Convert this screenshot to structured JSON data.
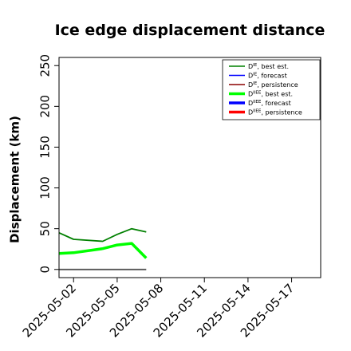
{
  "chart_data": {
    "type": "line",
    "title": "Ice edge displacement distance",
    "xlabel": "",
    "ylabel": "Displacement (km)",
    "ylim": [
      -10,
      260
    ],
    "yticks": [
      0,
      50,
      100,
      150,
      200,
      250
    ],
    "xlim": [
      "2025-05-01",
      "2025-05-19"
    ],
    "xticks": [
      "2025-05-02",
      "2025-05-05",
      "2025-05-08",
      "2025-05-11",
      "2025-05-14",
      "2025-05-17"
    ],
    "highlight_tick": "2025-05-08",
    "highlight_color": "#228b22",
    "grid": false,
    "legend_position": "top-right",
    "series": [
      {
        "name": "D^IE, best est.",
        "main": "D",
        "sup": "IE",
        "suffix": ", best est.",
        "color": "#008000",
        "width": "thin",
        "x": [
          "2025-05-01",
          "2025-05-02",
          "2025-05-04",
          "2025-05-05",
          "2025-05-06",
          "2025-05-07"
        ],
        "values": [
          45,
          37,
          34.5,
          43,
          50,
          46
        ]
      },
      {
        "name": "D^IE, forecast",
        "main": "D",
        "sup": "IE",
        "suffix": ", forecast",
        "color": "#0000ff",
        "width": "thin",
        "x": [],
        "values": []
      },
      {
        "name": "D^IE, persistence",
        "main": "D",
        "sup": "IE",
        "suffix": ", persistence",
        "color": "#8b0000",
        "width": "thin",
        "x": [],
        "values": []
      },
      {
        "name": "D^IIEE, best est.",
        "main": "D",
        "sup": "IIEE",
        "suffix": ", best est.",
        "color": "#00ff00",
        "width": "thick",
        "x": [
          "2025-05-01",
          "2025-05-02",
          "2025-05-04",
          "2025-05-05",
          "2025-05-06",
          "2025-05-07"
        ],
        "values": [
          19.5,
          20.5,
          25.5,
          30,
          32,
          14
        ]
      },
      {
        "name": "D^IIEE, forecast",
        "main": "D",
        "sup": "IIEE",
        "suffix": ", forecast",
        "color": "#0000ff",
        "width": "thick",
        "x": [],
        "values": []
      },
      {
        "name": "D^IIEE, persistence",
        "main": "D",
        "sup": "IIEE",
        "suffix": ", persistence",
        "color": "#ff0000",
        "width": "thick",
        "x": [],
        "values": []
      },
      {
        "name": "persistence baseline",
        "color": "#555555",
        "width": "thin",
        "in_legend": false,
        "x": [
          "2025-05-01",
          "2025-05-07"
        ],
        "values": [
          0,
          0
        ]
      }
    ]
  }
}
